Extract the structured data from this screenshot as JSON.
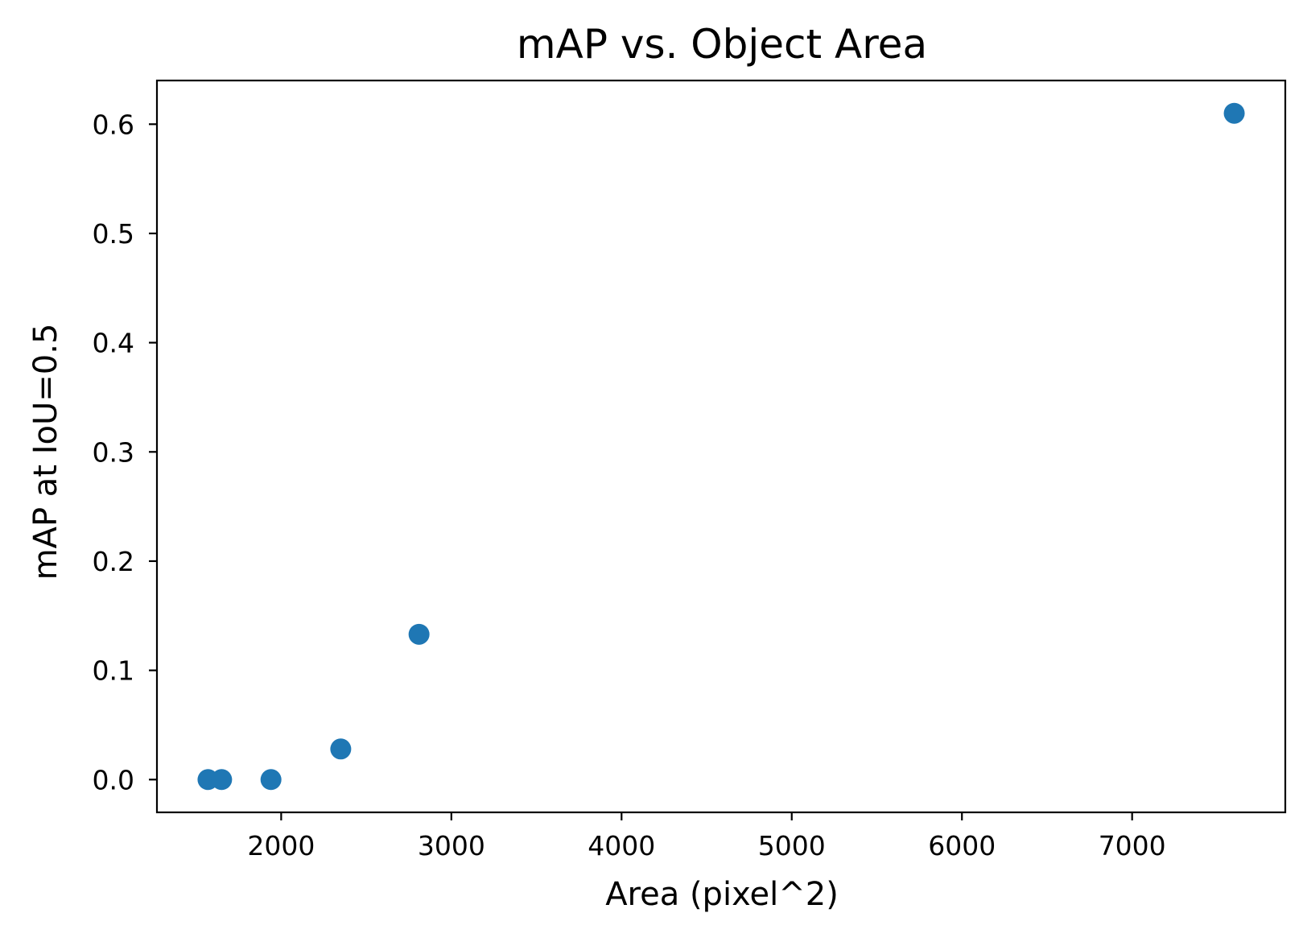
{
  "chart_data": {
    "type": "scatter",
    "title": "mAP vs. Object Area",
    "xlabel": "Area (pixel^2)",
    "ylabel": "mAP at IoU=0.5",
    "xlim": [
      1270,
      7900
    ],
    "ylim": [
      -0.03,
      0.64
    ],
    "xticks": [
      2000,
      3000,
      4000,
      5000,
      6000,
      7000
    ],
    "xtick_labels": [
      "2000",
      "3000",
      "4000",
      "5000",
      "6000",
      "7000"
    ],
    "yticks": [
      0.0,
      0.1,
      0.2,
      0.3,
      0.4,
      0.5,
      0.6
    ],
    "ytick_labels": [
      "0.0",
      "0.1",
      "0.2",
      "0.3",
      "0.4",
      "0.5",
      "0.6"
    ],
    "grid": false,
    "marker_color": "#1f77b4",
    "series": [
      {
        "points": [
          {
            "x": 1570,
            "y": 0.0
          },
          {
            "x": 1650,
            "y": 0.0
          },
          {
            "x": 1940,
            "y": 0.0
          },
          {
            "x": 2350,
            "y": 0.028
          },
          {
            "x": 2810,
            "y": 0.133
          },
          {
            "x": 7600,
            "y": 0.61
          }
        ]
      }
    ]
  }
}
